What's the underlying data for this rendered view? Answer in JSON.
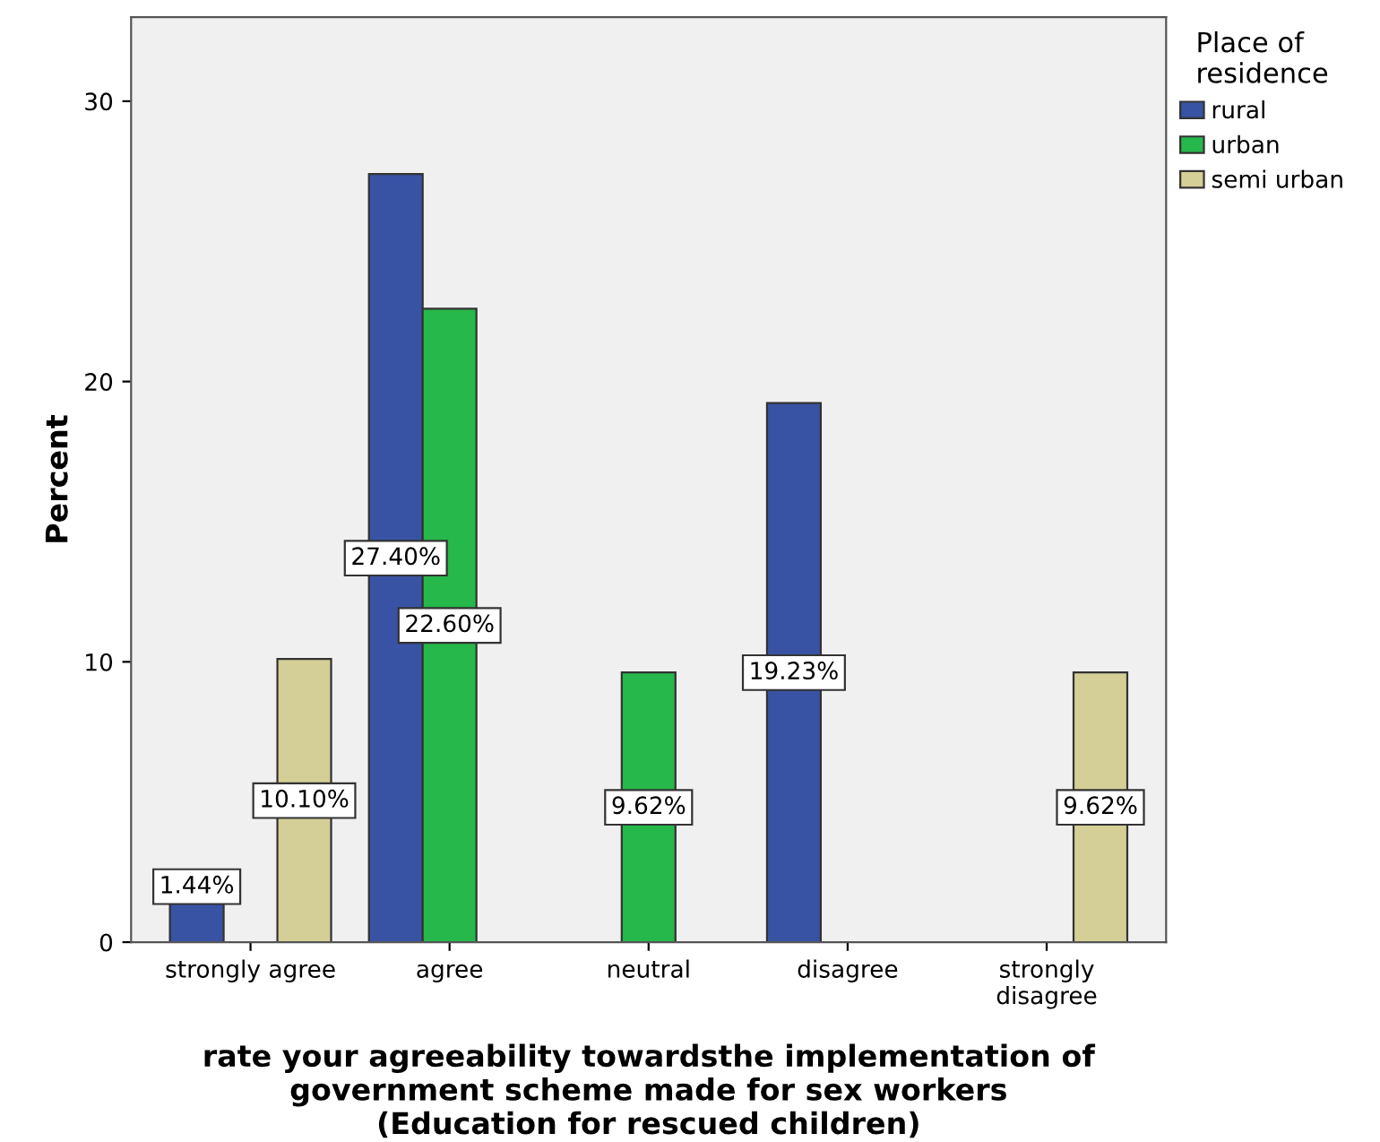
{
  "chart_data": {
    "type": "bar",
    "xlabel": "rate your agreeability towardsthe implementation of\ngovernment scheme made for sex workers\n(Education for rescued children)",
    "ylabel": "Percent",
    "legend_title": "Place of\nresidence",
    "categories": [
      "strongly agree",
      "agree",
      "neutral",
      "disagree",
      "strongly\ndisagree"
    ],
    "series": [
      {
        "name": "rural",
        "color": "#3953a4",
        "values": [
          1.44,
          27.4,
          null,
          19.23,
          null
        ],
        "value_labels": [
          "1.44%",
          "27.40%",
          null,
          "19.23%",
          null
        ]
      },
      {
        "name": "urban",
        "color": "#26b84a",
        "values": [
          null,
          22.6,
          9.62,
          null,
          null
        ],
        "value_labels": [
          null,
          "22.60%",
          "9.62%",
          null,
          null
        ]
      },
      {
        "name": "semi urban",
        "color": "#d4cf97",
        "values": [
          10.1,
          null,
          null,
          null,
          9.62
        ],
        "value_labels": [
          "10.10%",
          null,
          null,
          null,
          "9.62%"
        ]
      }
    ],
    "ylim": [
      0,
      33
    ],
    "yticks": [
      0,
      10,
      20,
      30
    ],
    "grid": false,
    "legend": "top right"
  }
}
